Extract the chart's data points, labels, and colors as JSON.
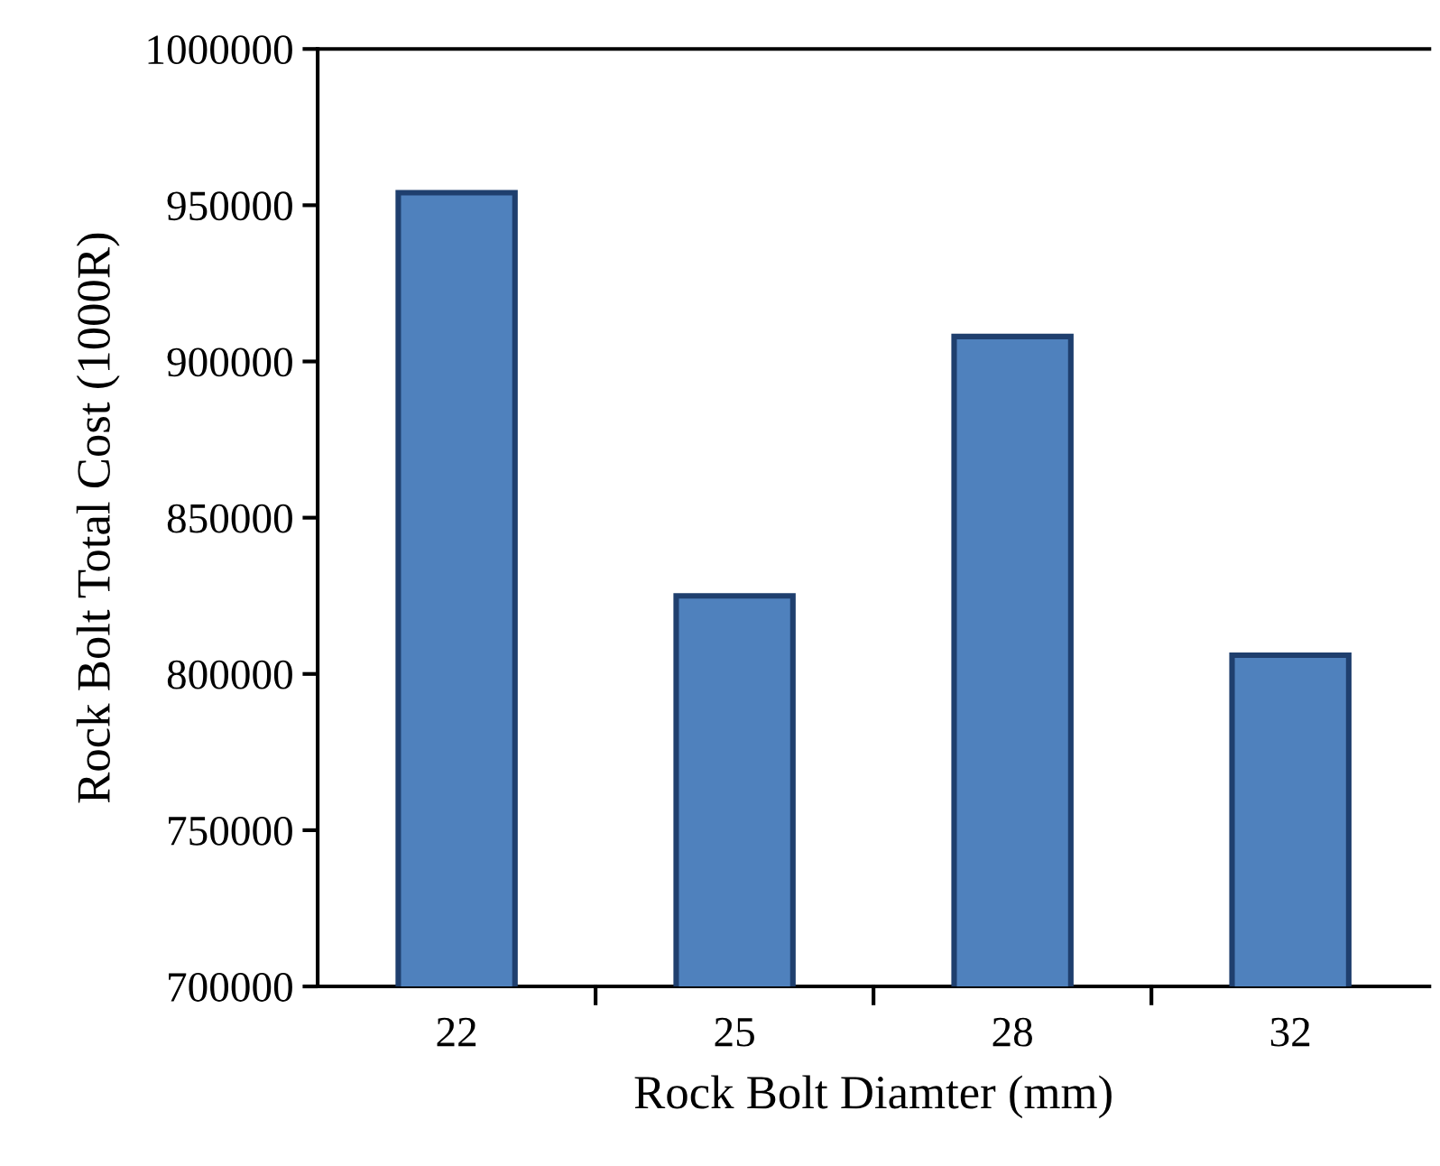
{
  "chart_data": {
    "type": "bar",
    "xlabel": "Rock Bolt Diamter (mm)",
    "ylabel": "Rock Bolt Total Cost (1000R)",
    "categories": [
      "22",
      "25",
      "28",
      "32"
    ],
    "values": [
      954000,
      825000,
      908000,
      806000
    ],
    "color": "#4f81bd",
    "ylim": [
      700000,
      1000000
    ],
    "yticks": [
      700000,
      750000,
      800000,
      850000,
      900000,
      950000,
      1000000
    ],
    "grid": false,
    "legend": false
  }
}
